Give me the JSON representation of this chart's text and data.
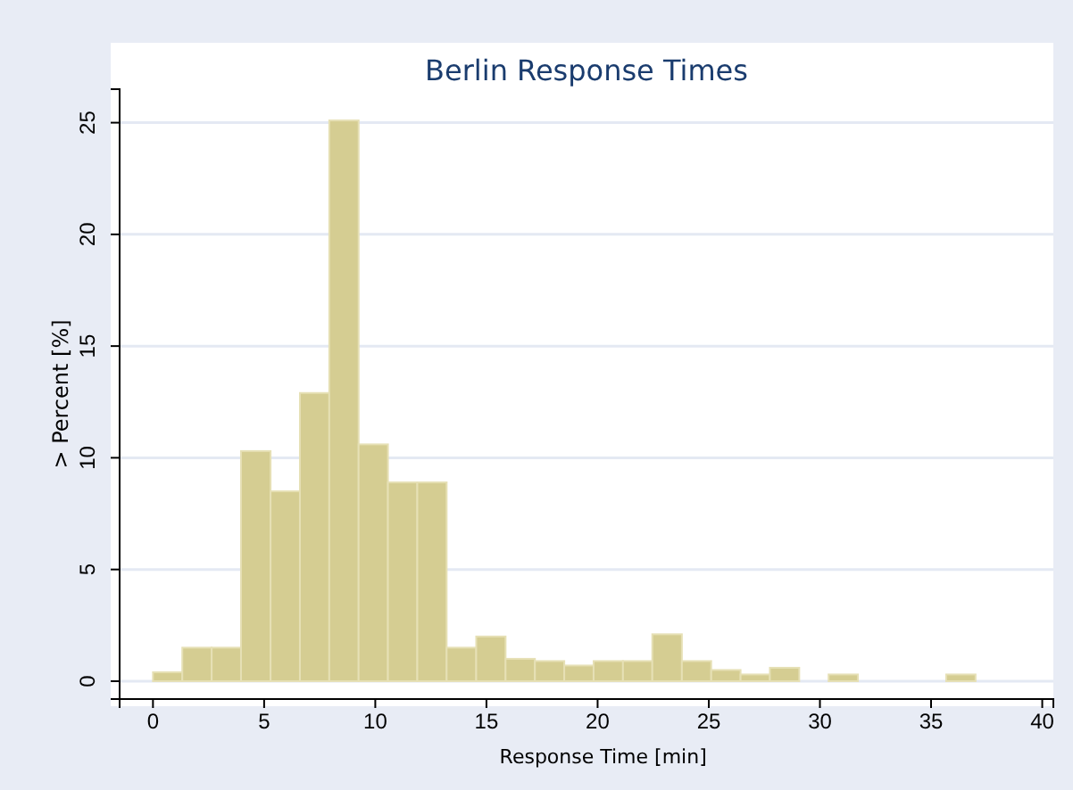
{
  "chart_data": {
    "type": "histogram",
    "title": "Berlin Response Times",
    "xlabel": "Response Time [min]",
    "ylabel": "> Percent [%]",
    "bins": [
      0,
      1.32,
      2.64,
      3.96,
      5.29,
      6.61,
      7.93,
      9.25,
      10.57,
      11.89,
      13.21,
      14.54,
      15.86,
      17.18,
      18.5,
      19.82,
      21.14,
      22.46,
      23.79,
      25.11,
      26.43,
      27.75,
      29.07,
      30.39,
      31.71,
      33.04,
      34.36,
      35.68,
      37
    ],
    "values": [
      0.4,
      1.5,
      1.5,
      10.3,
      8.5,
      12.9,
      25.1,
      10.6,
      8.9,
      8.9,
      1.5,
      2.0,
      1.0,
      0.9,
      0.7,
      0.9,
      0.9,
      2.1,
      0.9,
      0.5,
      0.3,
      0.6,
      0,
      0.3,
      0,
      0,
      0,
      0.3
    ],
    "color": "#d5cd92",
    "xlim": [
      -1.5,
      40.5
    ],
    "xticks": [
      0,
      5,
      10,
      15,
      20,
      25,
      30,
      35,
      40
    ],
    "ylim": [
      -0.8,
      26.5
    ],
    "yticks": [
      0,
      5,
      10,
      15,
      20,
      25
    ],
    "grid": "y"
  }
}
